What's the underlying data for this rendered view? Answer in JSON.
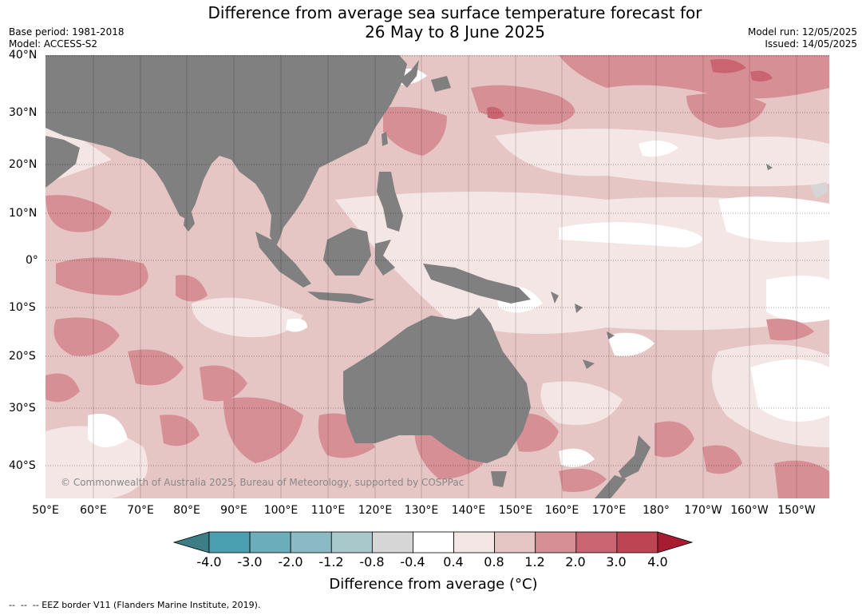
{
  "title": {
    "line1": "Difference from average sea surface temperature forecast for",
    "line2": "26 May to 8 June 2025"
  },
  "meta_left": {
    "base_period": "Base period: 1981-2018",
    "model": "Model: ACCESS-S2"
  },
  "meta_right": {
    "model_run": "Model run: 12/05/2025",
    "issued": "Issued: 14/05/2025"
  },
  "lat_labels": [
    "40°N",
    "30°N",
    "20°N",
    "10°N",
    "0°",
    "10°S",
    "20°S",
    "30°S",
    "40°S"
  ],
  "lon_labels": [
    "50°E",
    "60°E",
    "70°E",
    "80°E",
    "90°E",
    "100°E",
    "110°E",
    "120°E",
    "130°E",
    "140°E",
    "150°E",
    "160°E",
    "170°E",
    "180°",
    "170°W",
    "160°W",
    "150°W"
  ],
  "copyright": "© Commonwealth of Australia 2025, Bureau of Meteorology, supported by COSPPac",
  "colorbar": {
    "title": "Difference from average (°C)",
    "ticks": [
      "-4.0",
      "-3.0",
      "-2.0",
      "-1.2",
      "-0.8",
      "-0.4",
      "0.4",
      "0.8",
      "1.2",
      "2.0",
      "3.0",
      "4.0"
    ],
    "colors": [
      "#3d7d86",
      "#4aa0b0",
      "#6cadba",
      "#8cbac4",
      "#a8c8cc",
      "#d6d6d6",
      "#ffffff",
      "#f3e6e5",
      "#e6c6c4",
      "#d78f96",
      "#c86570",
      "#bd4452",
      "#a81c32"
    ]
  },
  "colors": {
    "land": "#808080",
    "anomaly_0_4_0_8": "#f3e6e5",
    "anomaly_0_8_1_2": "#e6c6c4",
    "anomaly_1_2_2_0": "#d78f96",
    "anomaly_2_0_3_0": "#c86570"
  },
  "footnote": "--  --  -- EEZ border V11 (Flanders Marine Institute, 2019)."
}
